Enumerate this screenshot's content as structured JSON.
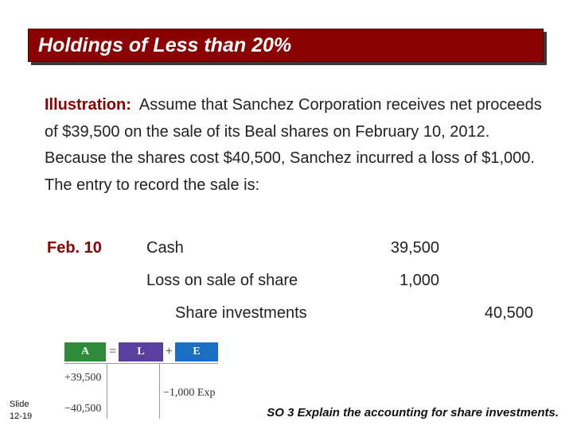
{
  "title": "Holdings of Less than 20%",
  "illustration": {
    "label": "Illustration:",
    "text": "Assume that Sanchez Corporation receives net proceeds of $39,500 on the sale of its Beal shares on February 10, 2012. Because the shares cost $40,500, Sanchez incurred a loss of $1,000. The entry to record the sale is:"
  },
  "journal": {
    "date": "Feb. 10",
    "rows": [
      {
        "account": "Cash",
        "debit": "39,500",
        "credit": ""
      },
      {
        "account": "Loss on sale of share",
        "debit": "1,000",
        "credit": ""
      },
      {
        "account": "Share investments",
        "debit": "",
        "credit": "40,500"
      }
    ]
  },
  "equation": {
    "a_label": "A",
    "eq_op": "=",
    "l_label": "L",
    "plus_op": "+",
    "e_label": "E",
    "a_values": [
      "+39,500",
      "−40,500"
    ],
    "e_value": "−1,000 Exp",
    "colors": {
      "a": "#2e8b3a",
      "l": "#5b3fa0",
      "e": "#1a6fc2"
    }
  },
  "slide": {
    "label": "Slide",
    "number": "12-19"
  },
  "footer": "SO 3  Explain the accounting for share investments."
}
